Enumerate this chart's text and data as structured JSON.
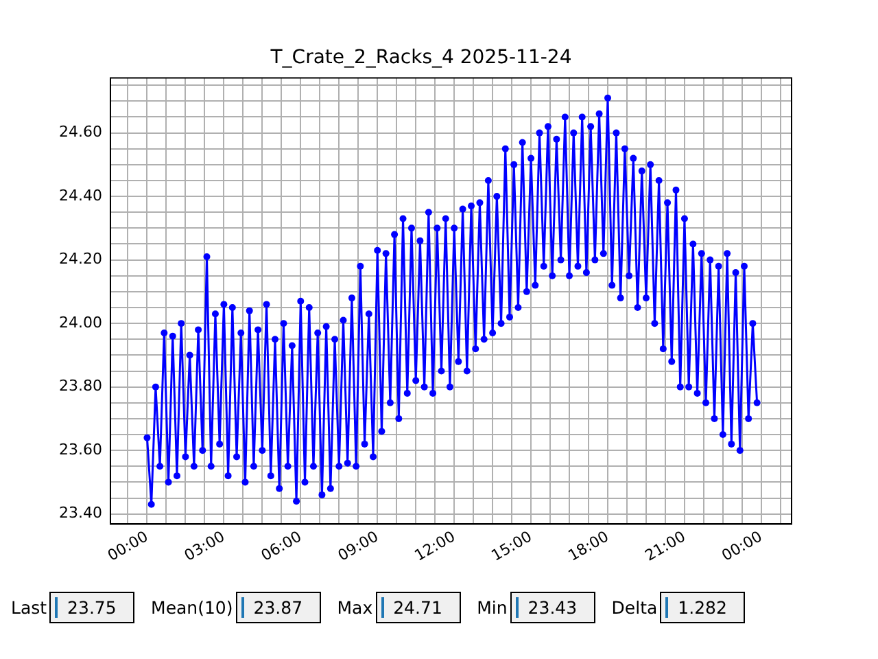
{
  "chart_data": {
    "type": "line",
    "title": "T_Crate_2_Racks_4 2025-11-24",
    "marker": "circle",
    "grid": true,
    "legend": false,
    "xlim": [
      "2025-11-23T22:34",
      "2025-11-25T01:11"
    ],
    "xticks": [
      {
        "value": "2025-11-23T23:15",
        "label": null
      },
      {
        "value": "2025-11-24T00:00",
        "label": "00:00"
      },
      {
        "value": "2025-11-24T00:45",
        "label": null
      },
      {
        "value": "2025-11-24T01:30",
        "label": null
      },
      {
        "value": "2025-11-24T02:15",
        "label": null
      },
      {
        "value": "2025-11-24T03:00",
        "label": "03:00"
      },
      {
        "value": "2025-11-24T03:45",
        "label": null
      },
      {
        "value": "2025-11-24T04:30",
        "label": null
      },
      {
        "value": "2025-11-24T05:15",
        "label": null
      },
      {
        "value": "2025-11-24T06:00",
        "label": "06:00"
      },
      {
        "value": "2025-11-24T06:45",
        "label": null
      },
      {
        "value": "2025-11-24T07:30",
        "label": null
      },
      {
        "value": "2025-11-24T08:15",
        "label": null
      },
      {
        "value": "2025-11-24T09:00",
        "label": "09:00"
      },
      {
        "value": "2025-11-24T09:45",
        "label": null
      },
      {
        "value": "2025-11-24T10:30",
        "label": null
      },
      {
        "value": "2025-11-24T11:15",
        "label": null
      },
      {
        "value": "2025-11-24T12:00",
        "label": "12:00"
      },
      {
        "value": "2025-11-24T12:45",
        "label": null
      },
      {
        "value": "2025-11-24T13:30",
        "label": null
      },
      {
        "value": "2025-11-24T14:15",
        "label": null
      },
      {
        "value": "2025-11-24T15:00",
        "label": "15:00"
      },
      {
        "value": "2025-11-24T15:45",
        "label": null
      },
      {
        "value": "2025-11-24T16:30",
        "label": null
      },
      {
        "value": "2025-11-24T17:15",
        "label": null
      },
      {
        "value": "2025-11-24T18:00",
        "label": "18:00"
      },
      {
        "value": "2025-11-24T18:45",
        "label": null
      },
      {
        "value": "2025-11-24T19:30",
        "label": null
      },
      {
        "value": "2025-11-24T20:15",
        "label": null
      },
      {
        "value": "2025-11-24T21:00",
        "label": "21:00"
      },
      {
        "value": "2025-11-24T21:45",
        "label": null
      },
      {
        "value": "2025-11-24T22:30",
        "label": null
      },
      {
        "value": "2025-11-24T23:15",
        "label": null
      },
      {
        "value": "2025-11-25T00:00",
        "label": "00:00"
      },
      {
        "value": "2025-11-25T00:45",
        "label": null
      }
    ],
    "ylim": [
      23.368,
      24.773
    ],
    "yticks": [
      {
        "value": 23.4,
        "label": "23.40"
      },
      {
        "value": 23.45,
        "label": null
      },
      {
        "value": 23.5,
        "label": null
      },
      {
        "value": 23.55,
        "label": null
      },
      {
        "value": 23.6,
        "label": "23.60"
      },
      {
        "value": 23.65,
        "label": null
      },
      {
        "value": 23.7,
        "label": null
      },
      {
        "value": 23.75,
        "label": null
      },
      {
        "value": 23.8,
        "label": "23.80"
      },
      {
        "value": 23.85,
        "label": null
      },
      {
        "value": 23.9,
        "label": null
      },
      {
        "value": 23.95,
        "label": null
      },
      {
        "value": 24.0,
        "label": "24.00"
      },
      {
        "value": 24.05,
        "label": null
      },
      {
        "value": 24.1,
        "label": null
      },
      {
        "value": 24.15,
        "label": null
      },
      {
        "value": 24.2,
        "label": "24.20"
      },
      {
        "value": 24.25,
        "label": null
      },
      {
        "value": 24.3,
        "label": null
      },
      {
        "value": 24.35,
        "label": null
      },
      {
        "value": 24.4,
        "label": "24.40"
      },
      {
        "value": 24.45,
        "label": null
      },
      {
        "value": 24.5,
        "label": null
      },
      {
        "value": 24.55,
        "label": null
      },
      {
        "value": 24.6,
        "label": "24.60"
      },
      {
        "value": 24.65,
        "label": null
      },
      {
        "value": 24.7,
        "label": null
      },
      {
        "value": 24.75,
        "label": null
      }
    ],
    "x": [
      "2025-11-24T00:00",
      "2025-11-24T00:10",
      "2025-11-24T00:20",
      "2025-11-24T00:30",
      "2025-11-24T00:40",
      "2025-11-24T00:50",
      "2025-11-24T01:00",
      "2025-11-24T01:10",
      "2025-11-24T01:20",
      "2025-11-24T01:30",
      "2025-11-24T01:40",
      "2025-11-24T01:50",
      "2025-11-24T02:00",
      "2025-11-24T02:10",
      "2025-11-24T02:20",
      "2025-11-24T02:30",
      "2025-11-24T02:40",
      "2025-11-24T02:50",
      "2025-11-24T03:00",
      "2025-11-24T03:10",
      "2025-11-24T03:20",
      "2025-11-24T03:30",
      "2025-11-24T03:40",
      "2025-11-24T03:50",
      "2025-11-24T04:00",
      "2025-11-24T04:10",
      "2025-11-24T04:20",
      "2025-11-24T04:30",
      "2025-11-24T04:40",
      "2025-11-24T04:50",
      "2025-11-24T05:00",
      "2025-11-24T05:10",
      "2025-11-24T05:20",
      "2025-11-24T05:30",
      "2025-11-24T05:40",
      "2025-11-24T05:50",
      "2025-11-24T06:00",
      "2025-11-24T06:10",
      "2025-11-24T06:20",
      "2025-11-24T06:30",
      "2025-11-24T06:40",
      "2025-11-24T06:50",
      "2025-11-24T07:00",
      "2025-11-24T07:10",
      "2025-11-24T07:20",
      "2025-11-24T07:30",
      "2025-11-24T07:40",
      "2025-11-24T07:50",
      "2025-11-24T08:00",
      "2025-11-24T08:10",
      "2025-11-24T08:20",
      "2025-11-24T08:30",
      "2025-11-24T08:40",
      "2025-11-24T08:50",
      "2025-11-24T09:00",
      "2025-11-24T09:10",
      "2025-11-24T09:20",
      "2025-11-24T09:30",
      "2025-11-24T09:40",
      "2025-11-24T09:50",
      "2025-11-24T10:00",
      "2025-11-24T10:10",
      "2025-11-24T10:20",
      "2025-11-24T10:30",
      "2025-11-24T10:40",
      "2025-11-24T10:50",
      "2025-11-24T11:00",
      "2025-11-24T11:10",
      "2025-11-24T11:20",
      "2025-11-24T11:30",
      "2025-11-24T11:40",
      "2025-11-24T11:50",
      "2025-11-24T12:00",
      "2025-11-24T12:10",
      "2025-11-24T12:20",
      "2025-11-24T12:30",
      "2025-11-24T12:40",
      "2025-11-24T12:50",
      "2025-11-24T13:00",
      "2025-11-24T13:10",
      "2025-11-24T13:20",
      "2025-11-24T13:30",
      "2025-11-24T13:40",
      "2025-11-24T13:50",
      "2025-11-24T14:00",
      "2025-11-24T14:10",
      "2025-11-24T14:20",
      "2025-11-24T14:30",
      "2025-11-24T14:40",
      "2025-11-24T14:50",
      "2025-11-24T15:00",
      "2025-11-24T15:10",
      "2025-11-24T15:20",
      "2025-11-24T15:30",
      "2025-11-24T15:40",
      "2025-11-24T15:50",
      "2025-11-24T16:00",
      "2025-11-24T16:10",
      "2025-11-24T16:20",
      "2025-11-24T16:30",
      "2025-11-24T16:40",
      "2025-11-24T16:50",
      "2025-11-24T17:00",
      "2025-11-24T17:10",
      "2025-11-24T17:20",
      "2025-11-24T17:30",
      "2025-11-24T17:40",
      "2025-11-24T17:50",
      "2025-11-24T18:00",
      "2025-11-24T18:10",
      "2025-11-24T18:20",
      "2025-11-24T18:30",
      "2025-11-24T18:40",
      "2025-11-24T18:50",
      "2025-11-24T19:00",
      "2025-11-24T19:10",
      "2025-11-24T19:20",
      "2025-11-24T19:30",
      "2025-11-24T19:40",
      "2025-11-24T19:50",
      "2025-11-24T20:00",
      "2025-11-24T20:10",
      "2025-11-24T20:20",
      "2025-11-24T20:30",
      "2025-11-24T20:40",
      "2025-11-24T20:50",
      "2025-11-24T21:00",
      "2025-11-24T21:10",
      "2025-11-24T21:20",
      "2025-11-24T21:30",
      "2025-11-24T21:40",
      "2025-11-24T21:50",
      "2025-11-24T22:00",
      "2025-11-24T22:10",
      "2025-11-24T22:20",
      "2025-11-24T22:30",
      "2025-11-24T22:40",
      "2025-11-24T22:50",
      "2025-11-24T23:00",
      "2025-11-24T23:10",
      "2025-11-24T23:20",
      "2025-11-24T23:30",
      "2025-11-24T23:40",
      "2025-11-24T23:50"
    ],
    "series": [
      {
        "color": "#0000ff",
        "values": [
          23.64,
          23.43,
          23.8,
          23.55,
          23.97,
          23.5,
          23.96,
          23.52,
          24.0,
          23.58,
          23.9,
          23.55,
          23.98,
          23.6,
          24.21,
          23.55,
          24.03,
          23.62,
          24.06,
          23.52,
          24.05,
          23.58,
          23.97,
          23.5,
          24.04,
          23.55,
          23.98,
          23.6,
          24.06,
          23.52,
          23.95,
          23.48,
          24.0,
          23.55,
          23.93,
          23.44,
          24.07,
          23.5,
          24.05,
          23.55,
          23.97,
          23.46,
          23.99,
          23.48,
          23.95,
          23.55,
          24.01,
          23.56,
          24.08,
          23.55,
          24.18,
          23.62,
          24.03,
          23.58,
          24.23,
          23.66,
          24.22,
          23.75,
          24.28,
          23.7,
          24.33,
          23.78,
          24.3,
          23.82,
          24.26,
          23.8,
          24.35,
          23.78,
          24.3,
          23.85,
          24.33,
          23.8,
          24.3,
          23.88,
          24.36,
          23.85,
          24.37,
          23.92,
          24.38,
          23.95,
          24.45,
          23.97,
          24.4,
          24.0,
          24.55,
          24.02,
          24.5,
          24.05,
          24.57,
          24.1,
          24.52,
          24.12,
          24.6,
          24.18,
          24.62,
          24.15,
          24.58,
          24.2,
          24.65,
          24.15,
          24.6,
          24.18,
          24.65,
          24.16,
          24.62,
          24.2,
          24.66,
          24.22,
          24.71,
          24.12,
          24.6,
          24.08,
          24.55,
          24.15,
          24.52,
          24.05,
          24.48,
          24.08,
          24.5,
          24.0,
          24.45,
          23.92,
          24.38,
          23.88,
          24.42,
          23.8,
          24.33,
          23.8,
          24.25,
          23.78,
          24.22,
          23.75,
          24.2,
          23.7,
          24.18,
          23.65,
          24.22,
          23.62,
          24.16,
          23.6,
          24.18,
          23.7,
          24.0,
          23.75
        ]
      }
    ],
    "annotations": [
      "Last",
      "23.75",
      "Mean(10)",
      "23.87",
      "Max",
      "24.71",
      "Min",
      "23.43",
      "Delta",
      "1.282"
    ]
  }
}
